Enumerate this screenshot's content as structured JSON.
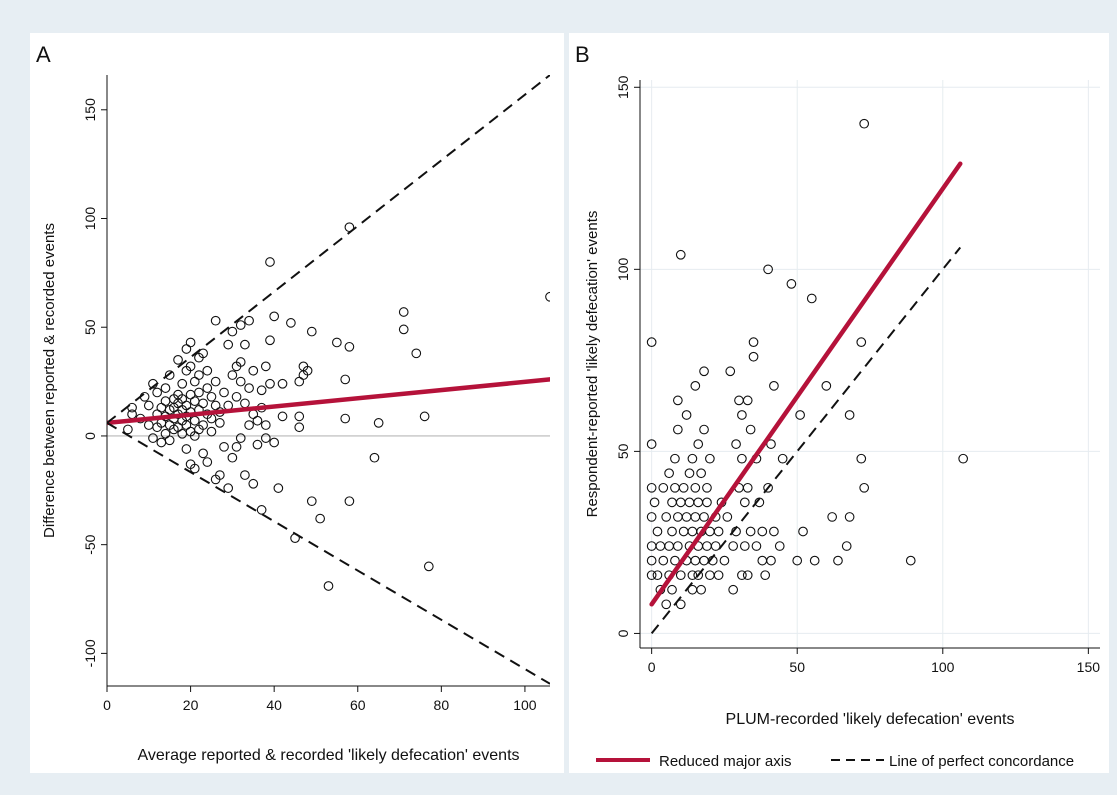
{
  "figure": {
    "panel_a_letter": "A",
    "panel_b_letter": "B",
    "legend": {
      "rma_label": "Reduced major axis",
      "concordance_label": "Line of perfect concordance"
    }
  },
  "colors": {
    "rma": "#b5123a",
    "points": "#111111",
    "reference": "#111111",
    "zero_line": "#b8b8b8",
    "grid": "#e6ecf0",
    "panel_bg": "#ffffff",
    "figure_bg": "#e7eef3"
  },
  "chart_data": [
    {
      "type": "scatter",
      "panel": "A",
      "title": "",
      "xlabel": "Average reported & recorded 'likely defecation' events",
      "ylabel": "Difference between reported & recorded events",
      "xlim": [
        0,
        106
      ],
      "ylim": [
        -115,
        166
      ],
      "xticks": [
        0,
        20,
        40,
        60,
        80,
        100
      ],
      "yticks": [
        -100,
        -50,
        0,
        50,
        100,
        150
      ],
      "grid": false,
      "zero_line": true,
      "lines": [
        {
          "style": "solid-thick",
          "color_key": "rma",
          "points": [
            [
              0,
              6
            ],
            [
              106,
              26
            ]
          ]
        },
        {
          "style": "dashed",
          "color_key": "reference",
          "points": [
            [
              0,
              6
            ],
            [
              106,
              166
            ]
          ]
        },
        {
          "style": "dashed",
          "color_key": "reference",
          "points": [
            [
              0,
              6
            ],
            [
              106,
              -114
            ]
          ]
        }
      ],
      "points": [
        [
          5,
          3
        ],
        [
          6,
          10
        ],
        [
          6,
          13
        ],
        [
          8,
          8
        ],
        [
          9,
          18
        ],
        [
          10,
          14
        ],
        [
          10,
          5
        ],
        [
          11,
          24
        ],
        [
          11,
          -1
        ],
        [
          12,
          10
        ],
        [
          12,
          20
        ],
        [
          12,
          4
        ],
        [
          13,
          13
        ],
        [
          13,
          6
        ],
        [
          13,
          -3
        ],
        [
          14,
          9
        ],
        [
          14,
          16
        ],
        [
          14,
          1
        ],
        [
          14,
          22
        ],
        [
          15,
          5
        ],
        [
          15,
          12
        ],
        [
          15,
          28
        ],
        [
          15,
          -2
        ],
        [
          16,
          8
        ],
        [
          16,
          17
        ],
        [
          16,
          3
        ],
        [
          16,
          13
        ],
        [
          17,
          15
        ],
        [
          17,
          10
        ],
        [
          17,
          19
        ],
        [
          17,
          4
        ],
        [
          17,
          35
        ],
        [
          18,
          12
        ],
        [
          18,
          7
        ],
        [
          18,
          17
        ],
        [
          18,
          1
        ],
        [
          18,
          24
        ],
        [
          19,
          14
        ],
        [
          19,
          5
        ],
        [
          19,
          30
        ],
        [
          19,
          9
        ],
        [
          19,
          -6
        ],
        [
          19,
          40
        ],
        [
          20,
          11
        ],
        [
          20,
          2
        ],
        [
          20,
          19
        ],
        [
          20,
          -13
        ],
        [
          20,
          43
        ],
        [
          20,
          32
        ],
        [
          21,
          16
        ],
        [
          21,
          7
        ],
        [
          21,
          25
        ],
        [
          21,
          0
        ],
        [
          21,
          -15
        ],
        [
          22,
          12
        ],
        [
          22,
          3
        ],
        [
          22,
          20
        ],
        [
          22,
          36
        ],
        [
          22,
          28
        ],
        [
          23,
          5
        ],
        [
          23,
          15
        ],
        [
          23,
          -8
        ],
        [
          23,
          38
        ],
        [
          24,
          10
        ],
        [
          24,
          22
        ],
        [
          24,
          -12
        ],
        [
          24,
          30
        ],
        [
          25,
          8
        ],
        [
          25,
          18
        ],
        [
          25,
          2
        ],
        [
          26,
          14
        ],
        [
          26,
          -20
        ],
        [
          26,
          25
        ],
        [
          26,
          53
        ],
        [
          27,
          6
        ],
        [
          27,
          11
        ],
        [
          27,
          -18
        ],
        [
          28,
          20
        ],
        [
          28,
          -5
        ],
        [
          29,
          14
        ],
        [
          29,
          42
        ],
        [
          29,
          -24
        ],
        [
          30,
          28
        ],
        [
          30,
          -10
        ],
        [
          30,
          48
        ],
        [
          31,
          32
        ],
        [
          31,
          18
        ],
        [
          31,
          -5
        ],
        [
          32,
          25
        ],
        [
          32,
          34
        ],
        [
          32,
          -1
        ],
        [
          32,
          51
        ],
        [
          33,
          15
        ],
        [
          33,
          42
        ],
        [
          33,
          -18
        ],
        [
          34,
          22
        ],
        [
          34,
          5
        ],
        [
          34,
          53
        ],
        [
          35,
          30
        ],
        [
          35,
          -22
        ],
        [
          35,
          10
        ],
        [
          36,
          7
        ],
        [
          36,
          -4
        ],
        [
          37,
          13
        ],
        [
          37,
          -34
        ],
        [
          37,
          21
        ],
        [
          38,
          5
        ],
        [
          38,
          32
        ],
        [
          38,
          -1
        ],
        [
          39,
          24
        ],
        [
          39,
          44
        ],
        [
          39,
          80
        ],
        [
          40,
          -3
        ],
        [
          40,
          55
        ],
        [
          41,
          -24
        ],
        [
          42,
          24
        ],
        [
          42,
          9
        ],
        [
          44,
          52
        ],
        [
          45,
          -47
        ],
        [
          46,
          25
        ],
        [
          46,
          4
        ],
        [
          46,
          9
        ],
        [
          47,
          32
        ],
        [
          47,
          28
        ],
        [
          48,
          30
        ],
        [
          49,
          48
        ],
        [
          49,
          -30
        ],
        [
          51,
          -38
        ],
        [
          53,
          -69
        ],
        [
          55,
          43
        ],
        [
          57,
          26
        ],
        [
          57,
          8
        ],
        [
          58,
          41
        ],
        [
          58,
          96
        ],
        [
          58,
          -30
        ],
        [
          64,
          -10
        ],
        [
          65,
          6
        ],
        [
          71,
          57
        ],
        [
          71,
          49
        ],
        [
          74,
          38
        ],
        [
          76,
          9
        ],
        [
          77,
          -60
        ],
        [
          106,
          64
        ]
      ]
    },
    {
      "type": "scatter",
      "panel": "B",
      "title": "",
      "xlabel": "PLUM-recorded 'likely defecation' events",
      "ylabel": "Respondent-reported 'likely defecation' events",
      "xlim": [
        -4,
        154
      ],
      "ylim": [
        -4,
        152
      ],
      "xticks": [
        0,
        50,
        100,
        150
      ],
      "yticks": [
        0,
        50,
        100,
        150
      ],
      "grid": true,
      "legend": "bottom",
      "series": [
        {
          "name": "Reduced major axis",
          "style": "solid-thick",
          "color_key": "rma",
          "points": [
            [
              0,
              8
            ],
            [
              106,
              129
            ]
          ]
        },
        {
          "name": "Line of perfect concordance",
          "style": "dashed",
          "color_key": "reference",
          "points": [
            [
              0,
              0
            ],
            [
              106,
              106
            ]
          ]
        }
      ],
      "points": [
        [
          0,
          80
        ],
        [
          0,
          52
        ],
        [
          0,
          40
        ],
        [
          0,
          32
        ],
        [
          0,
          24
        ],
        [
          0,
          16
        ],
        [
          0,
          20
        ],
        [
          1,
          36
        ],
        [
          2,
          28
        ],
        [
          2,
          16
        ],
        [
          3,
          24
        ],
        [
          3,
          12
        ],
        [
          4,
          40
        ],
        [
          4,
          20
        ],
        [
          5,
          32
        ],
        [
          5,
          8
        ],
        [
          6,
          44
        ],
        [
          6,
          24
        ],
        [
          6,
          16
        ],
        [
          7,
          36
        ],
        [
          7,
          28
        ],
        [
          7,
          12
        ],
        [
          8,
          40
        ],
        [
          8,
          20
        ],
        [
          8,
          48
        ],
        [
          9,
          64
        ],
        [
          9,
          56
        ],
        [
          9,
          32
        ],
        [
          9,
          24
        ],
        [
          10,
          104
        ],
        [
          10,
          36
        ],
        [
          10,
          16
        ],
        [
          10,
          8
        ],
        [
          11,
          28
        ],
        [
          11,
          40
        ],
        [
          12,
          20
        ],
        [
          12,
          32
        ],
        [
          12,
          60
        ],
        [
          13,
          24
        ],
        [
          13,
          36
        ],
        [
          13,
          44
        ],
        [
          14,
          16
        ],
        [
          14,
          28
        ],
        [
          14,
          12
        ],
        [
          14,
          48
        ],
        [
          15,
          68
        ],
        [
          15,
          32
        ],
        [
          15,
          20
        ],
        [
          15,
          40
        ],
        [
          16,
          24
        ],
        [
          16,
          52
        ],
        [
          16,
          16
        ],
        [
          16,
          36
        ],
        [
          17,
          28
        ],
        [
          17,
          12
        ],
        [
          17,
          44
        ],
        [
          18,
          20
        ],
        [
          18,
          32
        ],
        [
          18,
          56
        ],
        [
          18,
          72
        ],
        [
          19,
          24
        ],
        [
          19,
          36
        ],
        [
          19,
          40
        ],
        [
          20,
          16
        ],
        [
          20,
          28
        ],
        [
          20,
          48
        ],
        [
          21,
          20
        ],
        [
          22,
          32
        ],
        [
          22,
          24
        ],
        [
          23,
          28
        ],
        [
          23,
          16
        ],
        [
          24,
          36
        ],
        [
          25,
          20
        ],
        [
          26,
          32
        ],
        [
          27,
          72
        ],
        [
          28,
          12
        ],
        [
          28,
          24
        ],
        [
          29,
          52
        ],
        [
          29,
          28
        ],
        [
          30,
          64
        ],
        [
          30,
          40
        ],
        [
          31,
          48
        ],
        [
          31,
          16
        ],
        [
          31,
          60
        ],
        [
          32,
          24
        ],
        [
          32,
          36
        ],
        [
          33,
          40
        ],
        [
          33,
          64
        ],
        [
          33,
          16
        ],
        [
          34,
          56
        ],
        [
          34,
          28
        ],
        [
          35,
          76
        ],
        [
          35,
          80
        ],
        [
          36,
          48
        ],
        [
          36,
          24
        ],
        [
          37,
          36
        ],
        [
          38,
          20
        ],
        [
          38,
          28
        ],
        [
          39,
          16
        ],
        [
          40,
          100
        ],
        [
          40,
          40
        ],
        [
          41,
          52
        ],
        [
          41,
          20
        ],
        [
          42,
          68
        ],
        [
          42,
          28
        ],
        [
          44,
          24
        ],
        [
          45,
          48
        ],
        [
          48,
          96
        ],
        [
          50,
          20
        ],
        [
          51,
          60
        ],
        [
          52,
          28
        ],
        [
          55,
          92
        ],
        [
          56,
          20
        ],
        [
          60,
          68
        ],
        [
          62,
          32
        ],
        [
          64,
          20
        ],
        [
          67,
          24
        ],
        [
          68,
          60
        ],
        [
          68,
          32
        ],
        [
          72,
          48
        ],
        [
          72,
          80
        ],
        [
          73,
          40
        ],
        [
          73,
          140
        ],
        [
          89,
          20
        ],
        [
          107,
          48
        ]
      ]
    }
  ]
}
